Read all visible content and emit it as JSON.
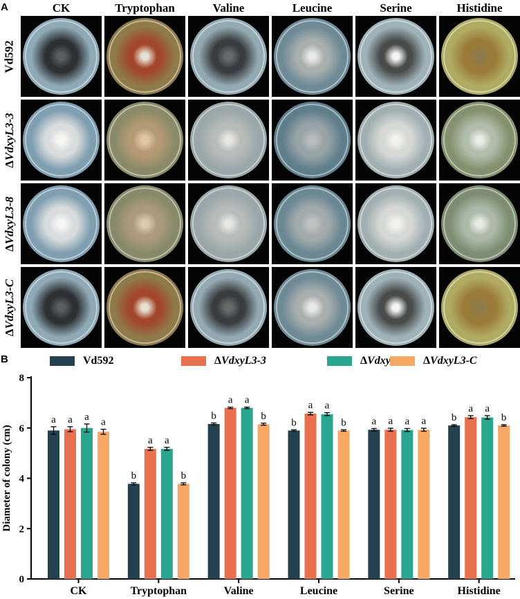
{
  "figure": {
    "panel_a_letter": "A",
    "panel_b_letter": "B",
    "columns": [
      "CK",
      "Tryptophan",
      "Valine",
      "Leucine",
      "Serine",
      "Histidine"
    ],
    "rows": [
      {
        "prefix": "",
        "name": "Vd592"
      },
      {
        "prefix": "Δ",
        "name": "VdxyL3-3"
      },
      {
        "prefix": "Δ",
        "name": "VdxyL3-8"
      },
      {
        "prefix": "Δ",
        "name": "VdxyL3-C"
      }
    ],
    "plate_colors": [
      [
        {
          "bg": "#8fa9b6",
          "colony": "#2e3134",
          "center": "#5b5f62"
        },
        {
          "bg": "#8f7a4a",
          "colony": "#a3472c",
          "center": "#e8e0d2"
        },
        {
          "bg": "#94aab2",
          "colony": "#3a3d3f",
          "center": "#6a6c6c"
        },
        {
          "bg": "#6e8a96",
          "colony": "#a9aeae",
          "center": "#e9e9e6"
        },
        {
          "bg": "#9fb2b8",
          "colony": "#4a4c4c",
          "center": "#f4f4f2"
        },
        {
          "bg": "#b0ab63",
          "colony": "#9a7b37",
          "center": "#8d7a4c"
        }
      ],
      [
        {
          "bg": "#7f9eb0",
          "colony": "#d9dcdc",
          "center": "#f6f6f4"
        },
        {
          "bg": "#8a8a68",
          "colony": "#b49a74",
          "center": "#e0c8a6"
        },
        {
          "bg": "#9aa6a8",
          "colony": "#b7bbb9",
          "center": "#e6e6e3"
        },
        {
          "bg": "#5f7e8c",
          "colony": "#98a3a6",
          "center": "#b8bcbc"
        },
        {
          "bg": "#a2afb1",
          "colony": "#d6d8d6",
          "center": "#f2f2ef"
        },
        {
          "bg": "#84906e",
          "colony": "#b1bcaa",
          "center": "#e9ede6"
        }
      ],
      [
        {
          "bg": "#7f9eb0",
          "colony": "#d9dcdc",
          "center": "#f6f6f4"
        },
        {
          "bg": "#87896a",
          "colony": "#ad9a7e",
          "center": "#dccab0"
        },
        {
          "bg": "#9aa6a8",
          "colony": "#b7bbb9",
          "center": "#e6e6e3"
        },
        {
          "bg": "#6a8794",
          "colony": "#a3aaab",
          "center": "#bfc2c1"
        },
        {
          "bg": "#a2afb1",
          "colony": "#d6d8d6",
          "center": "#f2f2ef"
        },
        {
          "bg": "#7e8d72",
          "colony": "#acb8a8",
          "center": "#e6ebe4"
        }
      ],
      [
        {
          "bg": "#8fa9b6",
          "colony": "#2e3134",
          "center": "#5b5f62"
        },
        {
          "bg": "#8f7a4a",
          "colony": "#a3472c",
          "center": "#e8e0d2"
        },
        {
          "bg": "#94aab2",
          "colony": "#3a3d3f",
          "center": "#6a6c6c"
        },
        {
          "bg": "#6e8a96",
          "colony": "#a9aeae",
          "center": "#e9e9e6"
        },
        {
          "bg": "#9fb2b8",
          "colony": "#4a4c4c",
          "center": "#f4f4f2"
        },
        {
          "bg": "#b0ab63",
          "colony": "#9a7b37",
          "center": "#8d7a4c"
        }
      ]
    ]
  },
  "chart_data": {
    "type": "bar",
    "categories": [
      "CK",
      "Tryptophan",
      "Valine",
      "Leucine",
      "Serine",
      "Histidine"
    ],
    "ylabel": "Diameter of colony (cm)",
    "xlabel": "",
    "ylim": [
      0,
      8
    ],
    "yticks": [
      "0",
      "2",
      "4",
      "6",
      "8"
    ],
    "grid": false,
    "legend_position": "top",
    "series": [
      {
        "prefix": "",
        "name": "Vd592",
        "color": "#24414f",
        "values": [
          5.9,
          3.78,
          6.16,
          5.9,
          5.93,
          6.1
        ],
        "errors": [
          0.15,
          0.04,
          0.04,
          0.03,
          0.05,
          0.03
        ],
        "letters": [
          "a",
          "b",
          "b",
          "b",
          "a",
          "b"
        ]
      },
      {
        "prefix": "Δ",
        "name": "VdxyL3-3",
        "color": "#e8704f",
        "values": [
          5.95,
          5.17,
          6.8,
          6.57,
          5.93,
          6.43
        ],
        "errors": [
          0.1,
          0.06,
          0.03,
          0.05,
          0.06,
          0.06
        ],
        "letters": [
          "a",
          "a",
          "a",
          "a",
          "a",
          "a"
        ]
      },
      {
        "prefix": "Δ",
        "name": "VdxyL3-8",
        "color": "#2aa58f",
        "values": [
          6.0,
          5.17,
          6.8,
          6.55,
          5.92,
          6.42
        ],
        "errors": [
          0.16,
          0.06,
          0.03,
          0.06,
          0.06,
          0.07
        ],
        "letters": [
          "a",
          "a",
          "a",
          "a",
          "a",
          "a"
        ]
      },
      {
        "prefix": "Δ",
        "name": "VdxyL3-C",
        "color": "#f6a864",
        "values": [
          5.85,
          3.78,
          6.15,
          5.9,
          5.93,
          6.1
        ],
        "errors": [
          0.1,
          0.04,
          0.04,
          0.03,
          0.06,
          0.03
        ],
        "letters": [
          "a",
          "b",
          "b",
          "b",
          "a",
          "b"
        ]
      }
    ]
  }
}
